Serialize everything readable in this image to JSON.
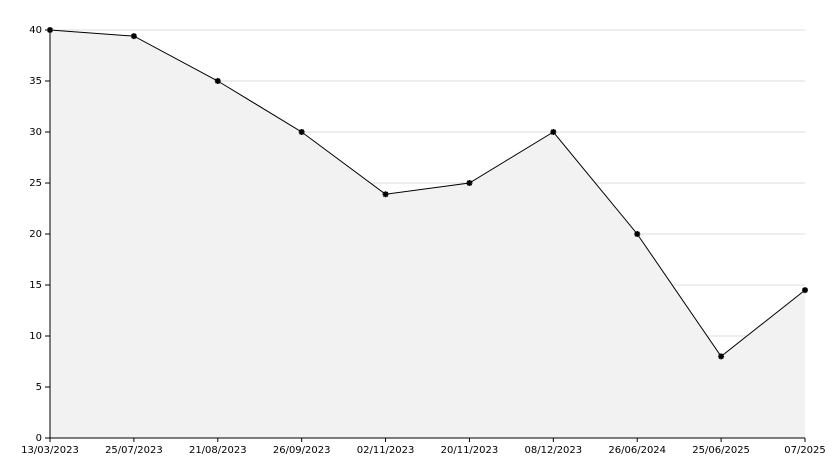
{
  "chart_data": {
    "type": "area",
    "categories": [
      "13/03/2023",
      "25/07/2023",
      "21/08/2023",
      "26/09/2023",
      "02/11/2023",
      "20/11/2023",
      "08/12/2023",
      "26/06/2024",
      "25/06/2025",
      "07/2025"
    ],
    "values": [
      40,
      39.4,
      35,
      30,
      23.9,
      25,
      30,
      20,
      8,
      14.5
    ],
    "color": "#000000",
    "fill_color": "#f2f2f2",
    "ylim": [
      0,
      40
    ],
    "yticks": [
      0,
      5,
      10,
      15,
      20,
      25,
      30,
      35,
      40
    ],
    "grid": true
  }
}
